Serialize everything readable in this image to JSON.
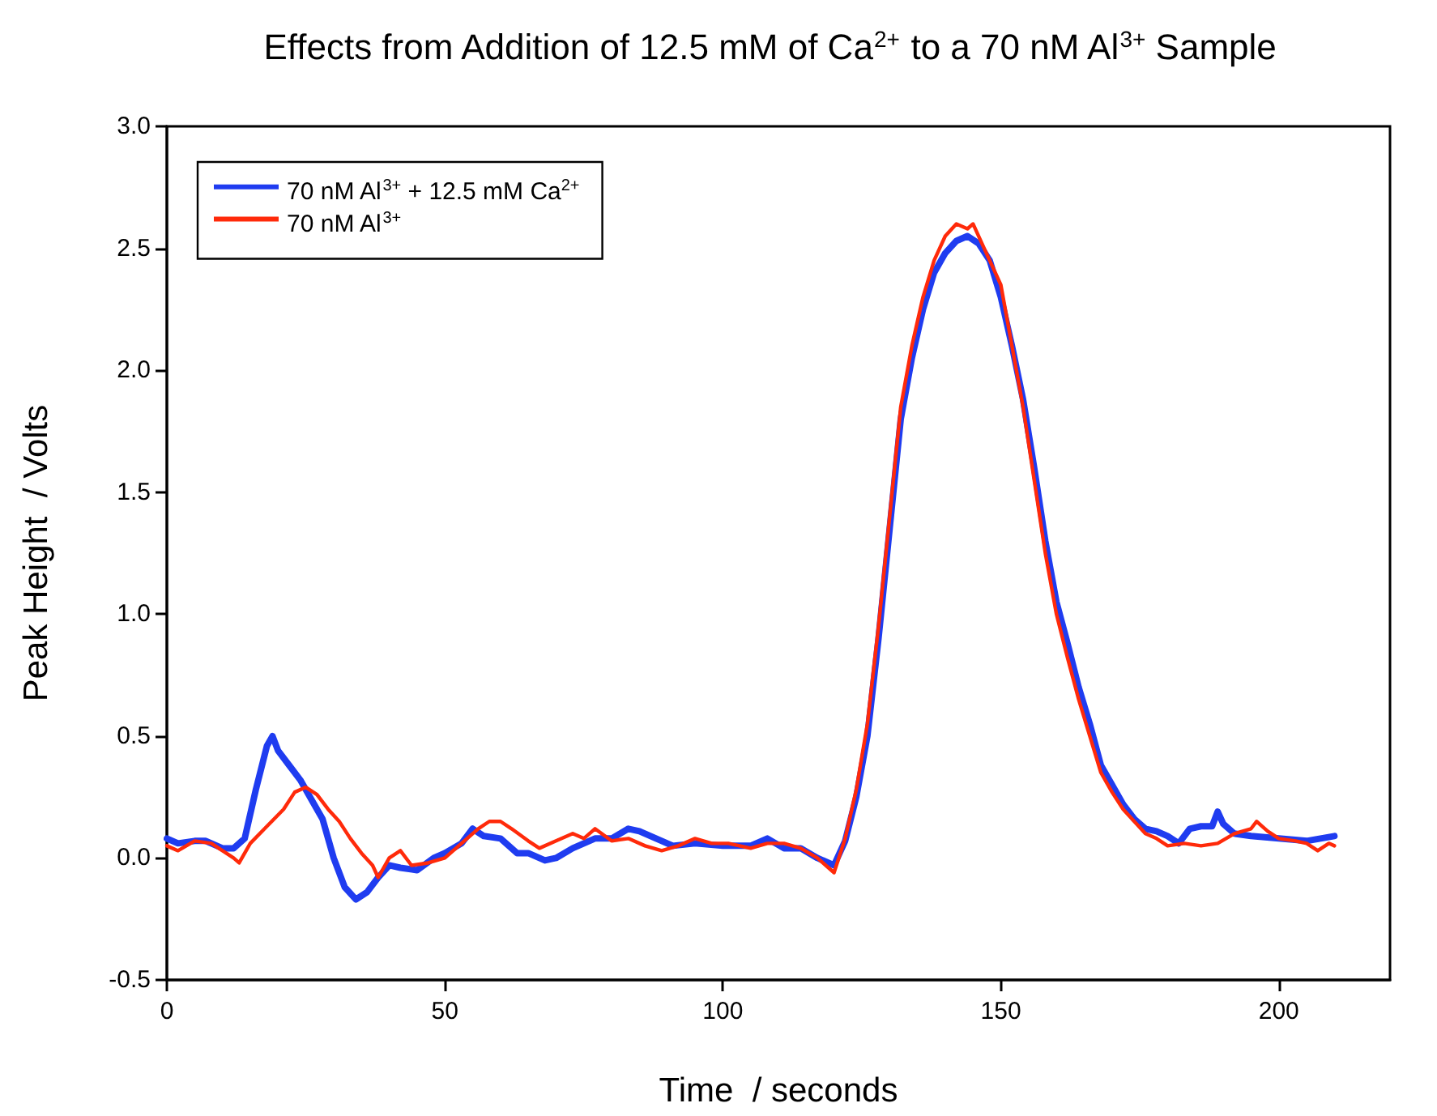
{
  "chart_data": {
    "type": "line",
    "title": "Effects from Addition of 12.5 mM of Ca$^{2+}$ to a 70 nM Al$^{3+}$ Sample",
    "xlabel": "Time  / seconds",
    "ylabel": "Peak Height  / Volts",
    "xlim": [
      0,
      220
    ],
    "xticks": [
      0,
      50,
      100,
      150,
      200
    ],
    "ylim": [
      -0.5,
      3.0
    ],
    "yticks": [
      {
        "value": -0.5,
        "label": "-0.5"
      },
      {
        "value": 0,
        "label": "0.0"
      },
      {
        "value": 0.5,
        "label": "0.5"
      },
      {
        "value": 1,
        "label": "1.0"
      },
      {
        "value": 1.5,
        "label": "1.5"
      },
      {
        "value": 2,
        "label": "2.0"
      },
      {
        "value": 2.5,
        "label": "2.5"
      },
      {
        "value": 3,
        "label": "3.0"
      }
    ],
    "grid": false,
    "legend": "top left",
    "marker": "none",
    "line_style": "solid",
    "series": [
      {
        "name": "70 nM Al$^{3+}$ + 12.5 mM Ca$^{2+}$",
        "color": "#1f3cf0",
        "x": [
          0,
          2,
          5,
          7,
          10,
          12,
          14,
          16,
          18,
          19,
          20,
          22,
          24,
          26,
          28,
          30,
          32,
          34,
          36,
          38,
          40,
          42,
          45,
          48,
          50,
          53,
          55,
          57,
          60,
          63,
          65,
          68,
          70,
          73,
          77,
          80,
          83,
          85,
          88,
          91,
          95,
          100,
          105,
          108,
          111,
          114,
          117,
          120,
          122,
          124,
          126,
          128,
          130,
          132,
          134,
          136,
          138,
          140,
          142,
          144,
          146,
          148,
          150,
          152,
          154,
          156,
          158,
          160,
          162,
          164,
          166,
          168,
          170,
          172,
          174,
          176,
          178,
          180,
          182,
          184,
          186,
          188,
          189,
          190,
          192,
          195,
          200,
          205,
          210
        ],
        "values": [
          0.08,
          0.06,
          0.07,
          0.07,
          0.04,
          0.04,
          0.08,
          0.28,
          0.46,
          0.5,
          0.44,
          0.38,
          0.32,
          0.24,
          0.16,
          0.0,
          -0.12,
          -0.17,
          -0.14,
          -0.08,
          -0.03,
          -0.04,
          -0.05,
          0.0,
          0.02,
          0.06,
          0.12,
          0.09,
          0.08,
          0.02,
          0.02,
          -0.01,
          0.0,
          0.04,
          0.08,
          0.08,
          0.12,
          0.11,
          0.08,
          0.05,
          0.06,
          0.05,
          0.05,
          0.08,
          0.04,
          0.04,
          0.0,
          -0.03,
          0.07,
          0.25,
          0.5,
          0.9,
          1.35,
          1.8,
          2.05,
          2.25,
          2.4,
          2.48,
          2.53,
          2.55,
          2.52,
          2.45,
          2.3,
          2.1,
          1.88,
          1.6,
          1.3,
          1.05,
          0.88,
          0.7,
          0.55,
          0.38,
          0.3,
          0.22,
          0.16,
          0.12,
          0.11,
          0.09,
          0.06,
          0.12,
          0.13,
          0.13,
          0.19,
          0.14,
          0.1,
          0.09,
          0.08,
          0.07,
          0.09
        ]
      },
      {
        "name": "70 nM Al$^{3+}$",
        "color": "#ff2a0a",
        "x": [
          0,
          2,
          5,
          8,
          10,
          12,
          13,
          15,
          18,
          21,
          23,
          25,
          27,
          29,
          31,
          33,
          35,
          37,
          38,
          40,
          42,
          44,
          47,
          50,
          53,
          56,
          58,
          60,
          62,
          65,
          67,
          70,
          73,
          75,
          77,
          80,
          83,
          86,
          89,
          92,
          95,
          98,
          101,
          105,
          108,
          111,
          114,
          117,
          120,
          122,
          124,
          126,
          128,
          130,
          132,
          134,
          136,
          138,
          140,
          142,
          144,
          145,
          147,
          149,
          150,
          152,
          154,
          156,
          158,
          160,
          162,
          164,
          166,
          168,
          170,
          172,
          174,
          176,
          178,
          180,
          183,
          186,
          189,
          192,
          195,
          196,
          198,
          200,
          203,
          205,
          207,
          209,
          210
        ],
        "values": [
          0.05,
          0.03,
          0.07,
          0.06,
          0.03,
          0.0,
          -0.02,
          0.06,
          0.13,
          0.2,
          0.27,
          0.29,
          0.26,
          0.2,
          0.15,
          0.08,
          0.02,
          -0.03,
          -0.08,
          0.0,
          0.03,
          -0.03,
          -0.02,
          0.0,
          0.06,
          0.12,
          0.15,
          0.15,
          0.12,
          0.07,
          0.04,
          0.07,
          0.1,
          0.08,
          0.12,
          0.07,
          0.08,
          0.05,
          0.03,
          0.05,
          0.08,
          0.06,
          0.06,
          0.04,
          0.06,
          0.06,
          0.04,
          0.0,
          -0.06,
          0.08,
          0.28,
          0.55,
          0.95,
          1.4,
          1.85,
          2.1,
          2.3,
          2.45,
          2.55,
          2.6,
          2.58,
          2.6,
          2.5,
          2.4,
          2.35,
          2.1,
          1.85,
          1.55,
          1.25,
          1.0,
          0.82,
          0.65,
          0.5,
          0.35,
          0.27,
          0.2,
          0.15,
          0.1,
          0.08,
          0.05,
          0.06,
          0.05,
          0.06,
          0.1,
          0.12,
          0.15,
          0.11,
          0.08,
          0.07,
          0.06,
          0.03,
          0.06,
          0.05
        ]
      }
    ]
  }
}
